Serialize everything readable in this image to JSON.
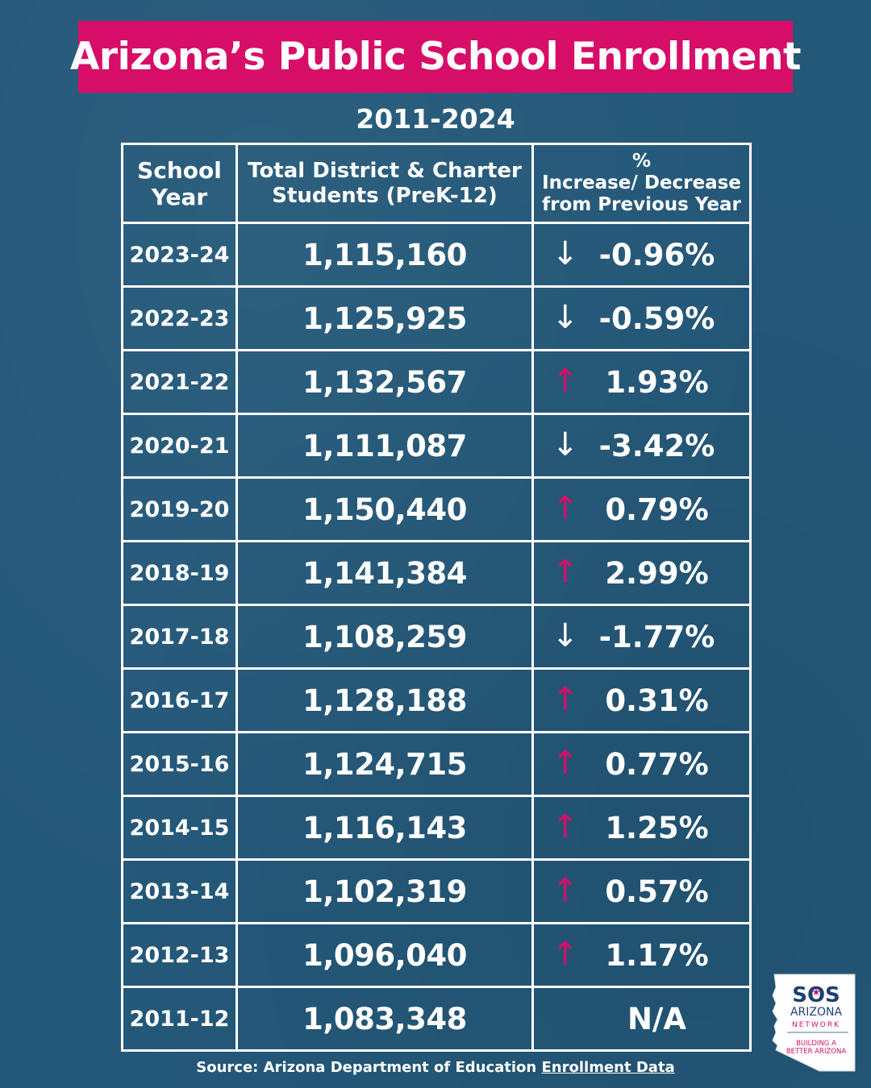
{
  "title": "Arizona’s Public School Enrollment",
  "subtitle": "2011-2024",
  "table": {
    "headers": {
      "year_line1": "School",
      "year_line2": "Year",
      "total_line1": "Total District & Charter",
      "total_line2": "Students (PreK-12)",
      "pct_line1": "%",
      "pct_line2": "Increase/ Decrease",
      "pct_line3": "from Previous Year"
    },
    "rows": [
      {
        "year": "2023-24",
        "total": "1,115,160",
        "pct": "-0.96%",
        "trend": "down",
        "arrow": "↓"
      },
      {
        "year": "2022-23",
        "total": "1,125,925",
        "pct": "-0.59%",
        "trend": "down",
        "arrow": "↓"
      },
      {
        "year": "2021-22",
        "total": "1,132,567",
        "pct": "1.93%",
        "trend": "up",
        "arrow": "↑"
      },
      {
        "year": "2020-21",
        "total": "1,111,087",
        "pct": "-3.42%",
        "trend": "down",
        "arrow": "↓"
      },
      {
        "year": "2019-20",
        "total": "1,150,440",
        "pct": "0.79%",
        "trend": "up",
        "arrow": "↑"
      },
      {
        "year": "2018-19",
        "total": "1,141,384",
        "pct": "2.99%",
        "trend": "up",
        "arrow": "↑"
      },
      {
        "year": "2017-18",
        "total": "1,108,259",
        "pct": "-1.77%",
        "trend": "down",
        "arrow": "↓"
      },
      {
        "year": "2016-17",
        "total": "1,128,188",
        "pct": "0.31%",
        "trend": "up",
        "arrow": "↑"
      },
      {
        "year": "2015-16",
        "total": "1,124,715",
        "pct": "0.77%",
        "trend": "up",
        "arrow": "↑"
      },
      {
        "year": "2014-15",
        "total": "1,116,143",
        "pct": "1.25%",
        "trend": "up",
        "arrow": "↑"
      },
      {
        "year": "2013-14",
        "total": "1,102,319",
        "pct": "0.57%",
        "trend": "up",
        "arrow": "↑"
      },
      {
        "year": "2012-13",
        "total": "1,096,040",
        "pct": "1.17%",
        "trend": "up",
        "arrow": "↑"
      },
      {
        "year": "2011-12",
        "total": "1,083,348",
        "pct": "N/A",
        "trend": "none",
        "arrow": ""
      }
    ]
  },
  "source": {
    "prefix": "Source: Arizona Department of Education ",
    "link_text": "Enrollment Data"
  },
  "logo": {
    "brand": "SOS",
    "name": "ARIZONA",
    "network": "NETWORK",
    "tagline_line1": "BUILDING A",
    "tagline_line2": "BETTER ARIZONA"
  },
  "colors": {
    "background": "#245879",
    "accent": "#d70e67",
    "text": "#ffffff",
    "logo_navy": "#1f3f73"
  }
}
